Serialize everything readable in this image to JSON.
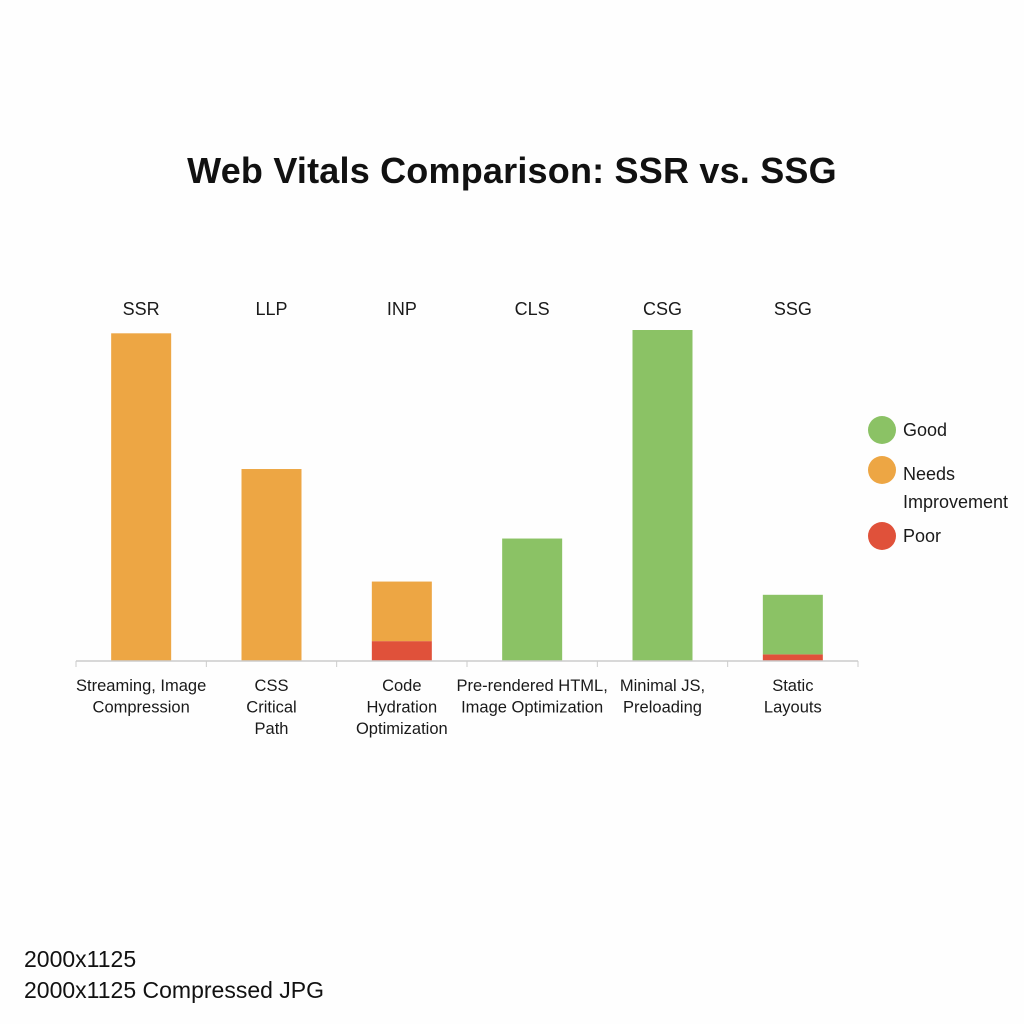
{
  "title": "Web Vitals Comparison: SSR vs. SSG",
  "colors": {
    "good": "#8bc265",
    "needs_improvement": "#eda644",
    "poor": "#e0513a",
    "axis": "#cccccc"
  },
  "legend": {
    "good": "Good",
    "needs_improvement": "Needs Improvement",
    "poor": "Poor"
  },
  "footnote": {
    "line1": "2000x1125",
    "line2": "2000x1125 Compressed JPG"
  },
  "chart_data": {
    "type": "bar",
    "title": "Web Vitals Comparison: SSR vs. SSG",
    "xlabel": "",
    "ylabel": "",
    "ylim": [
      0,
      100
    ],
    "grid": false,
    "legend_position": "right",
    "top_labels": [
      "SSR",
      "LLP",
      "INP",
      "CLS",
      "CSG",
      "SSG"
    ],
    "categories": [
      [
        "Streaming, Image",
        "Compression"
      ],
      [
        "CSS",
        "Critical",
        "Path"
      ],
      [
        "Code",
        "Hydration",
        "Optimization"
      ],
      [
        "Pre-rendered HTML,",
        "Image Optimization"
      ],
      [
        "Minimal JS,",
        "Preloading"
      ],
      [
        "Static",
        "Layouts"
      ]
    ],
    "series": [
      {
        "name": "Poor",
        "color_key": "poor",
        "values": [
          0,
          0,
          6,
          0,
          0,
          2
        ]
      },
      {
        "name": "Needs Improvement",
        "color_key": "needs_improvement",
        "values": [
          99,
          58,
          18,
          0,
          0,
          0
        ]
      },
      {
        "name": "Good",
        "color_key": "good",
        "values": [
          0,
          0,
          0,
          37,
          100,
          18
        ]
      }
    ]
  }
}
